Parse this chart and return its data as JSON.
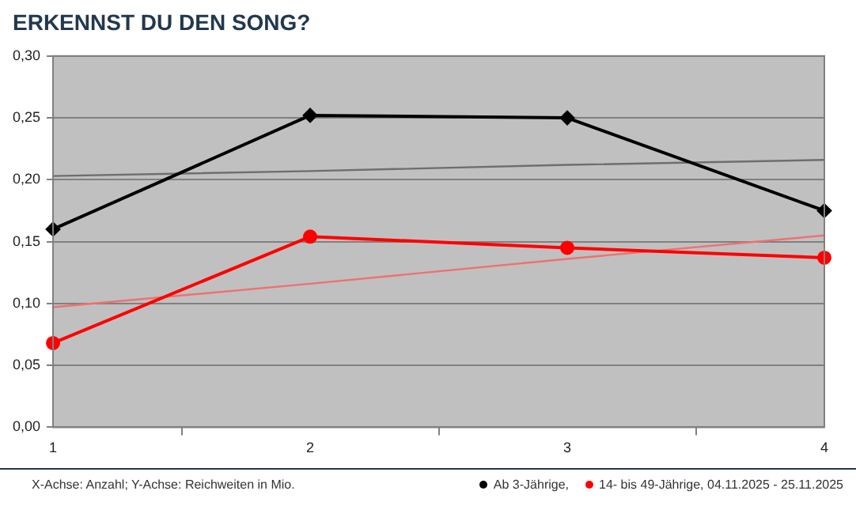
{
  "chart_data": {
    "type": "line",
    "title": "ERKENNST DU DEN SONG?",
    "categories": [
      "1",
      "2",
      "3",
      "4"
    ],
    "series": [
      {
        "name": "Ab 3-Jährige,",
        "color": "#000000",
        "marker": "diamond",
        "values": [
          0.16,
          0.252,
          0.25,
          0.175
        ]
      },
      {
        "name": "14- bis 49-Jährige, 04.11.2025 - 25.11.2025",
        "color": "#ff0000",
        "marker": "circle",
        "values": [
          0.068,
          0.154,
          0.145,
          0.137
        ]
      },
      {
        "type": "line",
        "color": "#6e6e6e",
        "marker": "none",
        "values": [
          0.203,
          0.207,
          0.212,
          0.216
        ]
      },
      {
        "type": "line",
        "color": "#f07070",
        "marker": "none",
        "values": [
          0.097,
          0.116,
          0.136,
          0.155
        ]
      }
    ],
    "ylim": [
      0,
      0.3
    ],
    "yticks": [
      {
        "value": 0,
        "label": "0,00"
      },
      {
        "value": 0.05,
        "label": "0,05"
      },
      {
        "value": 0.1,
        "label": "0,10"
      },
      {
        "value": 0.15,
        "label": "0,15"
      },
      {
        "value": 0.2,
        "label": "0,20"
      },
      {
        "value": 0.25,
        "label": "0,25"
      },
      {
        "value": 0.3,
        "label": "0,30"
      }
    ],
    "grid": "y",
    "legend": "bottom right",
    "annotations": [
      "X-Achse: Anzahl; Y-Achse: Reichweiten in Mio."
    ]
  }
}
